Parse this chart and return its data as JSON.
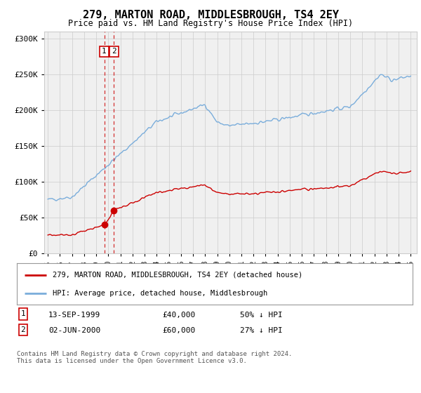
{
  "title": "279, MARTON ROAD, MIDDLESBROUGH, TS4 2EY",
  "subtitle": "Price paid vs. HM Land Registry's House Price Index (HPI)",
  "legend_line1": "279, MARTON ROAD, MIDDLESBROUGH, TS4 2EY (detached house)",
  "legend_line2": "HPI: Average price, detached house, Middlesbrough",
  "transaction1_date": "13-SEP-1999",
  "transaction1_price": "£40,000",
  "transaction1_hpi": "50% ↓ HPI",
  "transaction2_date": "02-JUN-2000",
  "transaction2_price": "£60,000",
  "transaction2_hpi": "27% ↓ HPI",
  "footer": "Contains HM Land Registry data © Crown copyright and database right 2024.\nThis data is licensed under the Open Government Licence v3.0.",
  "ylim": [
    0,
    310000
  ],
  "yticks": [
    0,
    50000,
    100000,
    150000,
    200000,
    250000,
    300000
  ],
  "red_color": "#cc0000",
  "blue_color": "#7aaddb",
  "grid_color": "#cccccc",
  "plot_bg_color": "#f0f0f0",
  "background_color": "#ffffff",
  "transaction1_x": 1999.71,
  "transaction1_y": 40000,
  "transaction2_x": 2000.42,
  "transaction2_y": 60000,
  "vline1_x": 1999.71,
  "vline2_x": 2000.42,
  "xlim_left": 1994.7,
  "xlim_right": 2025.5
}
